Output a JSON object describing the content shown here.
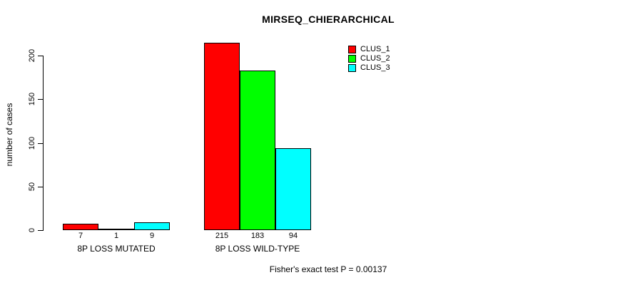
{
  "window": {
    "background": "#ffffff",
    "text_color": "#000000"
  },
  "chart_data": {
    "type": "bar",
    "title": "MIRSEQ_CHIERARCHICAL",
    "ylabel": "number of cases",
    "xlabel": "",
    "ylim": [
      0,
      215
    ],
    "yticks": [
      0,
      50,
      100,
      150,
      200
    ],
    "grid": false,
    "axis_color": "#000000",
    "bar_border_color": "#000000",
    "categories": [
      "8P LOSS MUTATED",
      "8P LOSS WILD-TYPE"
    ],
    "series": [
      {
        "name": "CLUS_1",
        "color": "#ff0000",
        "values": [
          7,
          215
        ]
      },
      {
        "name": "CLUS_2",
        "color": "#00ff00",
        "values": [
          1,
          183
        ]
      },
      {
        "name": "CLUS_3",
        "color": "#00ffff",
        "values": [
          9,
          94
        ]
      }
    ],
    "bar_value_labels": [
      [
        7,
        1,
        9
      ],
      [
        215,
        183,
        94
      ]
    ],
    "legend": {
      "position": "top-right",
      "entries": [
        "CLUS_1",
        "CLUS_2",
        "CLUS_3"
      ]
    },
    "annotation": "Fisher's exact test P = 0.00137"
  }
}
